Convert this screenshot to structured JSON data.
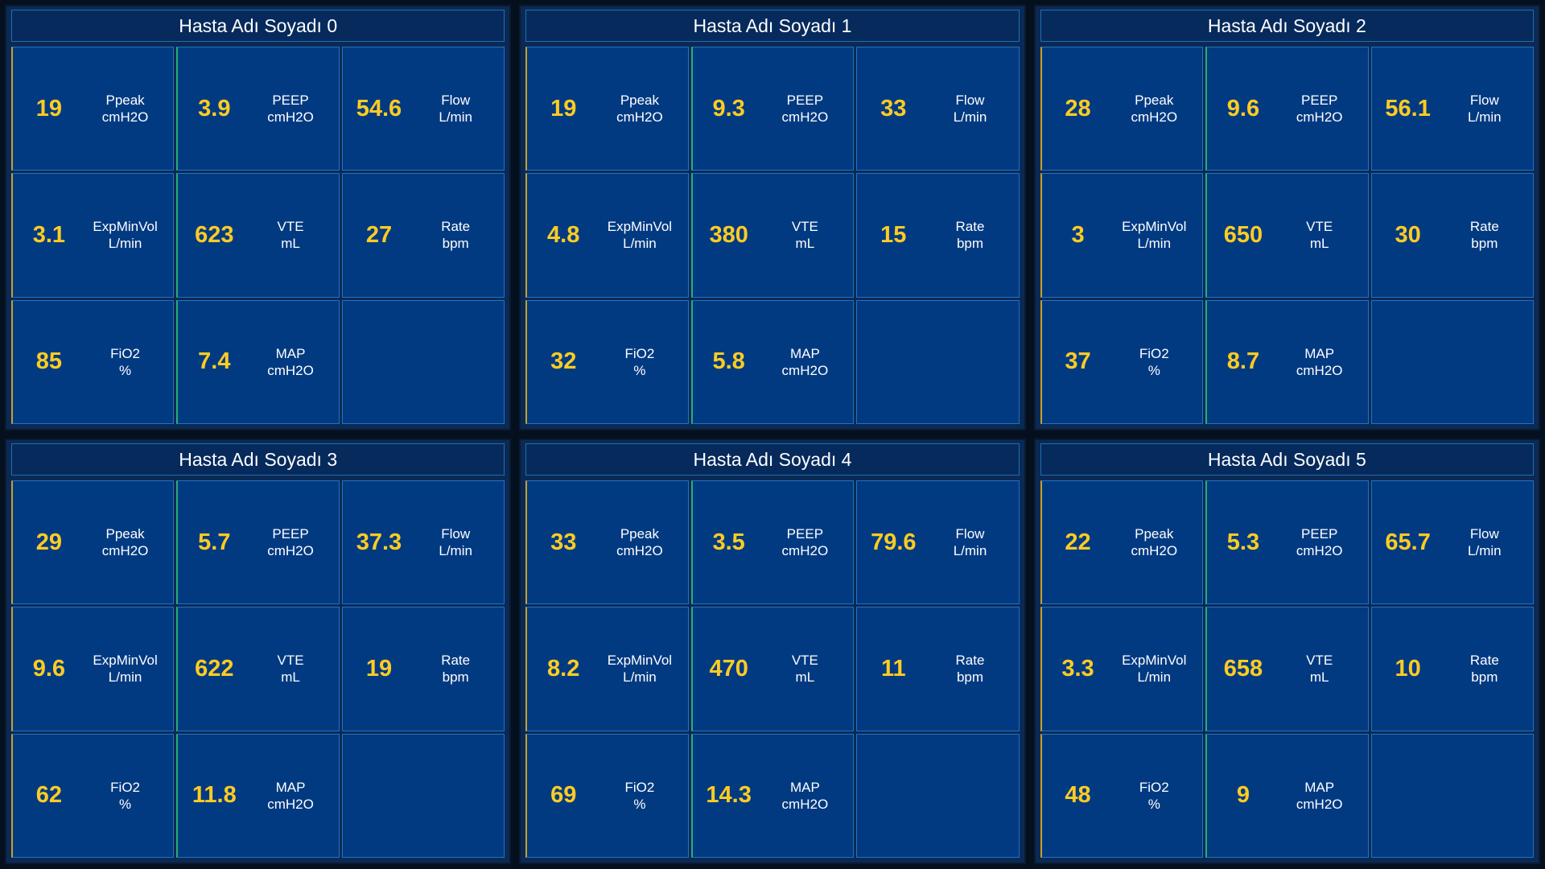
{
  "panels": [
    {
      "title": "Hasta Adı Soyadı 0",
      "metrics": [
        {
          "value": "19",
          "label": "Ppeak",
          "unit": "cmH2O"
        },
        {
          "value": "3.9",
          "label": "PEEP",
          "unit": "cmH2O"
        },
        {
          "value": "54.6",
          "label": "Flow",
          "unit": "L/min"
        },
        {
          "value": "3.1",
          "label": "ExpMinVol",
          "unit": "L/min"
        },
        {
          "value": "623",
          "label": "VTE",
          "unit": "mL"
        },
        {
          "value": "27",
          "label": "Rate",
          "unit": "bpm"
        },
        {
          "value": "85",
          "label": "FiO2",
          "unit": "%"
        },
        {
          "value": "7.4",
          "label": "MAP",
          "unit": "cmH2O"
        }
      ]
    },
    {
      "title": "Hasta Adı Soyadı 1",
      "metrics": [
        {
          "value": "19",
          "label": "Ppeak",
          "unit": "cmH2O"
        },
        {
          "value": "9.3",
          "label": "PEEP",
          "unit": "cmH2O"
        },
        {
          "value": "33",
          "label": "Flow",
          "unit": "L/min"
        },
        {
          "value": "4.8",
          "label": "ExpMinVol",
          "unit": "L/min"
        },
        {
          "value": "380",
          "label": "VTE",
          "unit": "mL"
        },
        {
          "value": "15",
          "label": "Rate",
          "unit": "bpm"
        },
        {
          "value": "32",
          "label": "FiO2",
          "unit": "%"
        },
        {
          "value": "5.8",
          "label": "MAP",
          "unit": "cmH2O"
        }
      ]
    },
    {
      "title": "Hasta Adı Soyadı 2",
      "metrics": [
        {
          "value": "28",
          "label": "Ppeak",
          "unit": "cmH2O"
        },
        {
          "value": "9.6",
          "label": "PEEP",
          "unit": "cmH2O"
        },
        {
          "value": "56.1",
          "label": "Flow",
          "unit": "L/min"
        },
        {
          "value": "3",
          "label": "ExpMinVol",
          "unit": "L/min"
        },
        {
          "value": "650",
          "label": "VTE",
          "unit": "mL"
        },
        {
          "value": "30",
          "label": "Rate",
          "unit": "bpm"
        },
        {
          "value": "37",
          "label": "FiO2",
          "unit": "%"
        },
        {
          "value": "8.7",
          "label": "MAP",
          "unit": "cmH2O"
        }
      ]
    },
    {
      "title": "Hasta Adı Soyadı 3",
      "metrics": [
        {
          "value": "29",
          "label": "Ppeak",
          "unit": "cmH2O"
        },
        {
          "value": "5.7",
          "label": "PEEP",
          "unit": "cmH2O"
        },
        {
          "value": "37.3",
          "label": "Flow",
          "unit": "L/min"
        },
        {
          "value": "9.6",
          "label": "ExpMinVol",
          "unit": "L/min"
        },
        {
          "value": "622",
          "label": "VTE",
          "unit": "mL"
        },
        {
          "value": "19",
          "label": "Rate",
          "unit": "bpm"
        },
        {
          "value": "62",
          "label": "FiO2",
          "unit": "%"
        },
        {
          "value": "11.8",
          "label": "MAP",
          "unit": "cmH2O"
        }
      ]
    },
    {
      "title": "Hasta Adı Soyadı 4",
      "metrics": [
        {
          "value": "33",
          "label": "Ppeak",
          "unit": "cmH2O"
        },
        {
          "value": "3.5",
          "label": "PEEP",
          "unit": "cmH2O"
        },
        {
          "value": "79.6",
          "label": "Flow",
          "unit": "L/min"
        },
        {
          "value": "8.2",
          "label": "ExpMinVol",
          "unit": "L/min"
        },
        {
          "value": "470",
          "label": "VTE",
          "unit": "mL"
        },
        {
          "value": "11",
          "label": "Rate",
          "unit": "bpm"
        },
        {
          "value": "69",
          "label": "FiO2",
          "unit": "%"
        },
        {
          "value": "14.3",
          "label": "MAP",
          "unit": "cmH2O"
        }
      ]
    },
    {
      "title": "Hasta Adı Soyadı 5",
      "metrics": [
        {
          "value": "22",
          "label": "Ppeak",
          "unit": "cmH2O"
        },
        {
          "value": "5.3",
          "label": "PEEP",
          "unit": "cmH2O"
        },
        {
          "value": "65.7",
          "label": "Flow",
          "unit": "L/min"
        },
        {
          "value": "3.3",
          "label": "ExpMinVol",
          "unit": "L/min"
        },
        {
          "value": "658",
          "label": "VTE",
          "unit": "mL"
        },
        {
          "value": "10",
          "label": "Rate",
          "unit": "bpm"
        },
        {
          "value": "48",
          "label": "FiO2",
          "unit": "%"
        },
        {
          "value": "9",
          "label": "MAP",
          "unit": "cmH2O"
        }
      ]
    }
  ]
}
